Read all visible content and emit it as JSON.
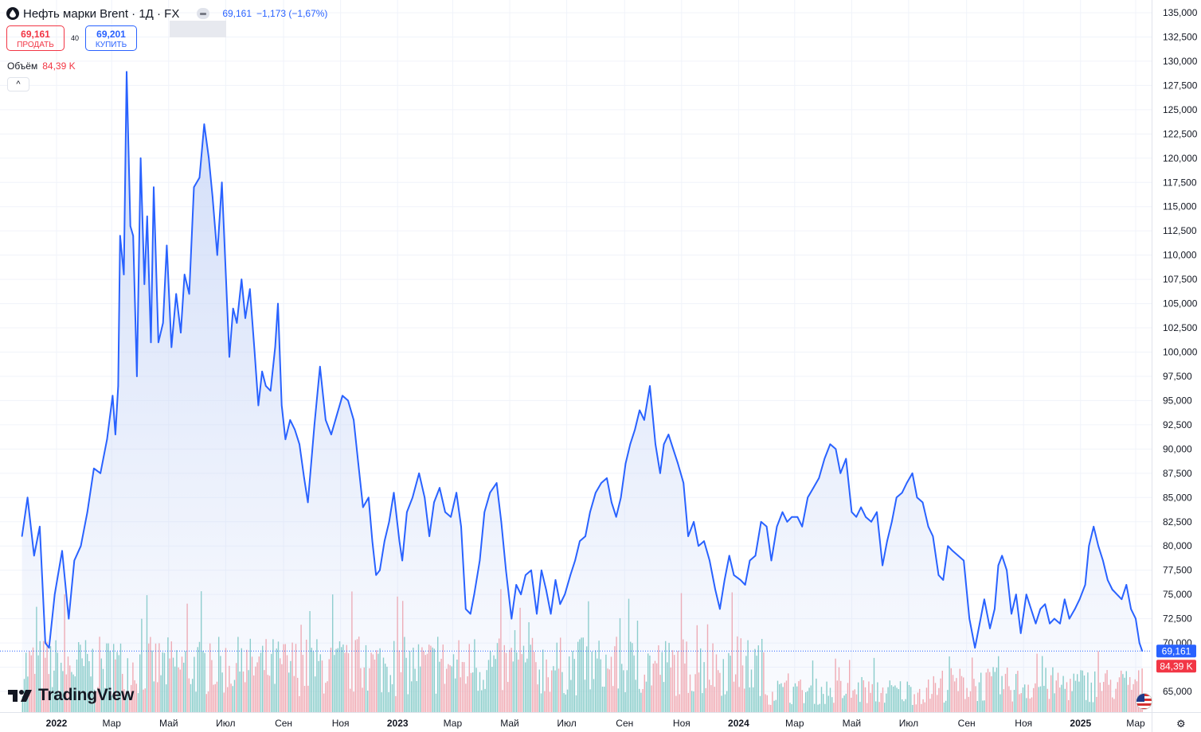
{
  "header": {
    "symbol_title": "Нефть марки Brent · 1Д · FX",
    "last_value": "69,161",
    "change": "−1,173 (−1,67%)",
    "sell_price": "69,161",
    "sell_label": "ПРОДАТЬ",
    "spread": "40",
    "buy_price": "69,201",
    "buy_label": "КУПИТЬ",
    "volume_label": "Объём",
    "volume_value": "84,39 K",
    "collapse_glyph": "^"
  },
  "logo_text": "TradingView",
  "price_badge": "69,161",
  "volume_badge": "84,39 K",
  "colors": {
    "line": "#2962ff",
    "area_top": "#c9d7f7",
    "volume_up": "#80cbc4",
    "volume_down": "#f5a3a9",
    "price_badge": "#2962ff",
    "volume_badge": "#f23645",
    "grid": "#f0f3fa"
  },
  "icons": [
    "brent-oil-drop-icon",
    "hide-legend-icon",
    "collapse-chevron-icon",
    "tradingview-logo-icon",
    "us-flag-icon",
    "chart-settings-icon"
  ],
  "chart_data": {
    "type": "area",
    "title": "Нефть марки Brent · 1Д · FX",
    "xlabel": "",
    "ylabel": "",
    "ylim": [
      64000,
      136000
    ],
    "y_ticks": [
      "65,000",
      "67,500",
      "70,000",
      "72,500",
      "75,000",
      "77,500",
      "80,000",
      "82,500",
      "85,000",
      "87,500",
      "90,000",
      "92,500",
      "95,000",
      "97,500",
      "100,000",
      "102,500",
      "105,000",
      "107,500",
      "110,000",
      "112,500",
      "115,000",
      "117,500",
      "120,000",
      "122,500",
      "125,000",
      "127,500",
      "130,000",
      "132,500",
      "135,000"
    ],
    "x_ticks": [
      "2022",
      "Мар",
      "Май",
      "Июл",
      "Сен",
      "Ноя",
      "2023",
      "Мар",
      "Май",
      "Июл",
      "Сен",
      "Ноя",
      "2024",
      "Мар",
      "Май",
      "Июл",
      "Сен",
      "Ноя",
      "2025",
      "Мар"
    ],
    "x_tick_dates": [
      "2022-01-01",
      "2022-03-01",
      "2022-05-01",
      "2022-07-01",
      "2022-09-01",
      "2022-11-01",
      "2023-01-01",
      "2023-03-01",
      "2023-05-01",
      "2023-07-01",
      "2023-09-01",
      "2023-11-01",
      "2024-01-01",
      "2024-03-01",
      "2024-05-01",
      "2024-07-01",
      "2024-09-01",
      "2024-11-01",
      "2025-01-01",
      "2025-03-01"
    ],
    "grid": true,
    "series": [
      {
        "values": [
          [
            "2021-11-25",
            81.0
          ],
          [
            "2021-12-01",
            85.0
          ],
          [
            "2021-12-08",
            79.0
          ],
          [
            "2021-12-14",
            82.0
          ],
          [
            "2021-12-20",
            70.0
          ],
          [
            "2021-12-24",
            69.5
          ],
          [
            "2021-12-30",
            75.0
          ],
          [
            "2022-01-07",
            79.5
          ],
          [
            "2022-01-14",
            72.5
          ],
          [
            "2022-01-20",
            78.5
          ],
          [
            "2022-01-27",
            80.0
          ],
          [
            "2022-02-03",
            83.5
          ],
          [
            "2022-02-10",
            88.0
          ],
          [
            "2022-02-17",
            87.5
          ],
          [
            "2022-02-24",
            91.0
          ],
          [
            "2022-03-02",
            95.5
          ],
          [
            "2022-03-05",
            91.5
          ],
          [
            "2022-03-08",
            96.5
          ],
          [
            "2022-03-10",
            112.0
          ],
          [
            "2022-03-14",
            108.0
          ],
          [
            "2022-03-17",
            128.9
          ],
          [
            "2022-03-21",
            113.0
          ],
          [
            "2022-03-24",
            112.0
          ],
          [
            "2022-03-28",
            97.5
          ],
          [
            "2022-04-01",
            120.0
          ],
          [
            "2022-04-05",
            107.0
          ],
          [
            "2022-04-08",
            114.0
          ],
          [
            "2022-04-12",
            101.0
          ],
          [
            "2022-04-15",
            117.0
          ],
          [
            "2022-04-20",
            101.0
          ],
          [
            "2022-04-25",
            103.0
          ],
          [
            "2022-04-29",
            111.0
          ],
          [
            "2022-05-04",
            100.5
          ],
          [
            "2022-05-09",
            106.0
          ],
          [
            "2022-05-14",
            102.0
          ],
          [
            "2022-05-18",
            108.0
          ],
          [
            "2022-05-23",
            106.0
          ],
          [
            "2022-05-28",
            117.0
          ],
          [
            "2022-06-03",
            118.0
          ],
          [
            "2022-06-08",
            123.5
          ],
          [
            "2022-06-13",
            120.0
          ],
          [
            "2022-06-17",
            116.0
          ],
          [
            "2022-06-22",
            110.0
          ],
          [
            "2022-06-27",
            117.5
          ],
          [
            "2022-07-01",
            108.5
          ],
          [
            "2022-07-05",
            99.5
          ],
          [
            "2022-07-09",
            104.5
          ],
          [
            "2022-07-13",
            103.0
          ],
          [
            "2022-07-18",
            107.5
          ],
          [
            "2022-07-22",
            103.5
          ],
          [
            "2022-07-27",
            106.5
          ],
          [
            "2022-08-01",
            100.0
          ],
          [
            "2022-08-05",
            94.5
          ],
          [
            "2022-08-09",
            98.0
          ],
          [
            "2022-08-13",
            96.5
          ],
          [
            "2022-08-18",
            96.0
          ],
          [
            "2022-08-23",
            100.5
          ],
          [
            "2022-08-26",
            105.0
          ],
          [
            "2022-08-30",
            94.5
          ],
          [
            "2022-09-03",
            91.0
          ],
          [
            "2022-09-08",
            93.0
          ],
          [
            "2022-09-13",
            92.0
          ],
          [
            "2022-09-18",
            90.5
          ],
          [
            "2022-09-23",
            87.0
          ],
          [
            "2022-09-27",
            84.5
          ],
          [
            "2022-10-04",
            92.5
          ],
          [
            "2022-10-10",
            98.5
          ],
          [
            "2022-10-16",
            93.0
          ],
          [
            "2022-10-22",
            91.5
          ],
          [
            "2022-10-28",
            93.5
          ],
          [
            "2022-11-03",
            95.5
          ],
          [
            "2022-11-09",
            95.0
          ],
          [
            "2022-11-15",
            93.0
          ],
          [
            "2022-11-20",
            88.5
          ],
          [
            "2022-11-25",
            84.0
          ],
          [
            "2022-12-01",
            85.0
          ],
          [
            "2022-12-05",
            80.5
          ],
          [
            "2022-12-09",
            77.0
          ],
          [
            "2022-12-13",
            77.5
          ],
          [
            "2022-12-18",
            80.5
          ],
          [
            "2022-12-23",
            82.5
          ],
          [
            "2022-12-28",
            85.5
          ],
          [
            "2023-01-03",
            80.5
          ],
          [
            "2023-01-06",
            78.5
          ],
          [
            "2023-01-11",
            83.5
          ],
          [
            "2023-01-17",
            85.0
          ],
          [
            "2023-01-24",
            87.5
          ],
          [
            "2023-01-30",
            85.0
          ],
          [
            "2023-02-04",
            81.0
          ],
          [
            "2023-02-09",
            84.5
          ],
          [
            "2023-02-15",
            86.0
          ],
          [
            "2023-02-21",
            83.5
          ],
          [
            "2023-02-27",
            83.0
          ],
          [
            "2023-03-05",
            85.5
          ],
          [
            "2023-03-10",
            82.0
          ],
          [
            "2023-03-15",
            73.5
          ],
          [
            "2023-03-20",
            73.0
          ],
          [
            "2023-03-24",
            75.0
          ],
          [
            "2023-03-30",
            78.5
          ],
          [
            "2023-04-04",
            83.5
          ],
          [
            "2023-04-10",
            85.5
          ],
          [
            "2023-04-17",
            86.5
          ],
          [
            "2023-04-22",
            82.5
          ],
          [
            "2023-04-27",
            77.5
          ],
          [
            "2023-05-03",
            72.5
          ],
          [
            "2023-05-08",
            76.0
          ],
          [
            "2023-05-13",
            75.0
          ],
          [
            "2023-05-18",
            77.0
          ],
          [
            "2023-05-24",
            77.5
          ],
          [
            "2023-05-30",
            73.0
          ],
          [
            "2023-06-04",
            77.5
          ],
          [
            "2023-06-09",
            75.5
          ],
          [
            "2023-06-14",
            73.0
          ],
          [
            "2023-06-19",
            76.5
          ],
          [
            "2023-06-24",
            74.0
          ],
          [
            "2023-06-29",
            75.0
          ],
          [
            "2023-07-05",
            77.0
          ],
          [
            "2023-07-10",
            78.5
          ],
          [
            "2023-07-15",
            80.5
          ],
          [
            "2023-07-21",
            81.0
          ],
          [
            "2023-07-26",
            83.5
          ],
          [
            "2023-08-01",
            85.5
          ],
          [
            "2023-08-07",
            86.5
          ],
          [
            "2023-08-13",
            87.0
          ],
          [
            "2023-08-18",
            84.5
          ],
          [
            "2023-08-23",
            83.0
          ],
          [
            "2023-08-28",
            85.0
          ],
          [
            "2023-09-02",
            88.5
          ],
          [
            "2023-09-07",
            90.5
          ],
          [
            "2023-09-12",
            92.0
          ],
          [
            "2023-09-17",
            94.0
          ],
          [
            "2023-09-22",
            93.0
          ],
          [
            "2023-09-28",
            96.5
          ],
          [
            "2023-10-04",
            90.5
          ],
          [
            "2023-10-09",
            87.5
          ],
          [
            "2023-10-13",
            90.5
          ],
          [
            "2023-10-18",
            91.5
          ],
          [
            "2023-10-23",
            90.0
          ],
          [
            "2023-10-28",
            88.5
          ],
          [
            "2023-11-03",
            86.5
          ],
          [
            "2023-11-08",
            81.0
          ],
          [
            "2023-11-14",
            82.5
          ],
          [
            "2023-11-19",
            80.0
          ],
          [
            "2023-11-25",
            80.5
          ],
          [
            "2023-12-01",
            78.5
          ],
          [
            "2023-12-07",
            75.5
          ],
          [
            "2023-12-12",
            73.5
          ],
          [
            "2023-12-17",
            76.5
          ],
          [
            "2023-12-22",
            79.0
          ],
          [
            "2023-12-27",
            77.0
          ],
          [
            "2024-01-03",
            76.5
          ],
          [
            "2024-01-08",
            76.0
          ],
          [
            "2024-01-13",
            78.5
          ],
          [
            "2024-01-19",
            79.0
          ],
          [
            "2024-01-25",
            82.5
          ],
          [
            "2024-01-31",
            82.0
          ],
          [
            "2024-02-05",
            78.5
          ],
          [
            "2024-02-11",
            82.0
          ],
          [
            "2024-02-17",
            83.5
          ],
          [
            "2024-02-22",
            82.5
          ],
          [
            "2024-02-27",
            83.0
          ],
          [
            "2024-03-04",
            83.0
          ],
          [
            "2024-03-09",
            82.0
          ],
          [
            "2024-03-15",
            85.0
          ],
          [
            "2024-03-21",
            86.0
          ],
          [
            "2024-03-27",
            87.0
          ],
          [
            "2024-04-02",
            89.0
          ],
          [
            "2024-04-08",
            90.5
          ],
          [
            "2024-04-14",
            90.0
          ],
          [
            "2024-04-19",
            87.5
          ],
          [
            "2024-04-25",
            89.0
          ],
          [
            "2024-05-01",
            83.5
          ],
          [
            "2024-05-06",
            83.0
          ],
          [
            "2024-05-11",
            84.0
          ],
          [
            "2024-05-16",
            83.0
          ],
          [
            "2024-05-22",
            82.5
          ],
          [
            "2024-05-28",
            83.5
          ],
          [
            "2024-06-03",
            78.0
          ],
          [
            "2024-06-08",
            80.5
          ],
          [
            "2024-06-13",
            82.5
          ],
          [
            "2024-06-18",
            85.0
          ],
          [
            "2024-06-24",
            85.5
          ],
          [
            "2024-06-29",
            86.5
          ],
          [
            "2024-07-05",
            87.5
          ],
          [
            "2024-07-10",
            85.0
          ],
          [
            "2024-07-16",
            84.5
          ],
          [
            "2024-07-22",
            82.0
          ],
          [
            "2024-07-27",
            81.0
          ],
          [
            "2024-08-02",
            77.0
          ],
          [
            "2024-08-07",
            76.5
          ],
          [
            "2024-08-12",
            80.0
          ],
          [
            "2024-08-17",
            79.5
          ],
          [
            "2024-08-23",
            79.0
          ],
          [
            "2024-08-29",
            78.5
          ],
          [
            "2024-09-04",
            72.5
          ],
          [
            "2024-09-10",
            69.5
          ],
          [
            "2024-09-15",
            72.0
          ],
          [
            "2024-09-20",
            74.5
          ],
          [
            "2024-09-26",
            71.5
          ],
          [
            "2024-10-01",
            73.5
          ],
          [
            "2024-10-05",
            78.0
          ],
          [
            "2024-10-09",
            79.0
          ],
          [
            "2024-10-14",
            77.5
          ],
          [
            "2024-10-19",
            73.0
          ],
          [
            "2024-10-24",
            75.0
          ],
          [
            "2024-10-29",
            71.0
          ],
          [
            "2024-11-04",
            75.0
          ],
          [
            "2024-11-09",
            73.5
          ],
          [
            "2024-11-14",
            72.0
          ],
          [
            "2024-11-19",
            73.5
          ],
          [
            "2024-11-24",
            74.0
          ],
          [
            "2024-11-29",
            72.0
          ],
          [
            "2024-12-04",
            72.5
          ],
          [
            "2024-12-10",
            72.0
          ],
          [
            "2024-12-15",
            74.5
          ],
          [
            "2024-12-20",
            72.5
          ],
          [
            "2024-12-26",
            73.5
          ],
          [
            "2024-12-31",
            74.5
          ],
          [
            "2025-01-06",
            76.0
          ],
          [
            "2025-01-10",
            80.0
          ],
          [
            "2025-01-15",
            82.0
          ],
          [
            "2025-01-20",
            80.0
          ],
          [
            "2025-01-25",
            78.5
          ],
          [
            "2025-01-30",
            76.5
          ],
          [
            "2025-02-04",
            75.5
          ],
          [
            "2025-02-09",
            75.0
          ],
          [
            "2025-02-14",
            74.5
          ],
          [
            "2025-02-19",
            76.0
          ],
          [
            "2025-02-24",
            73.5
          ],
          [
            "2025-03-01",
            72.5
          ],
          [
            "2025-03-05",
            70.0
          ],
          [
            "2025-03-08",
            69.16
          ]
        ]
      }
    ],
    "volume": {
      "label": "Объём",
      "last": "84,39 K",
      "note": "Объём отображается гистограммой в нижней части графика"
    }
  }
}
